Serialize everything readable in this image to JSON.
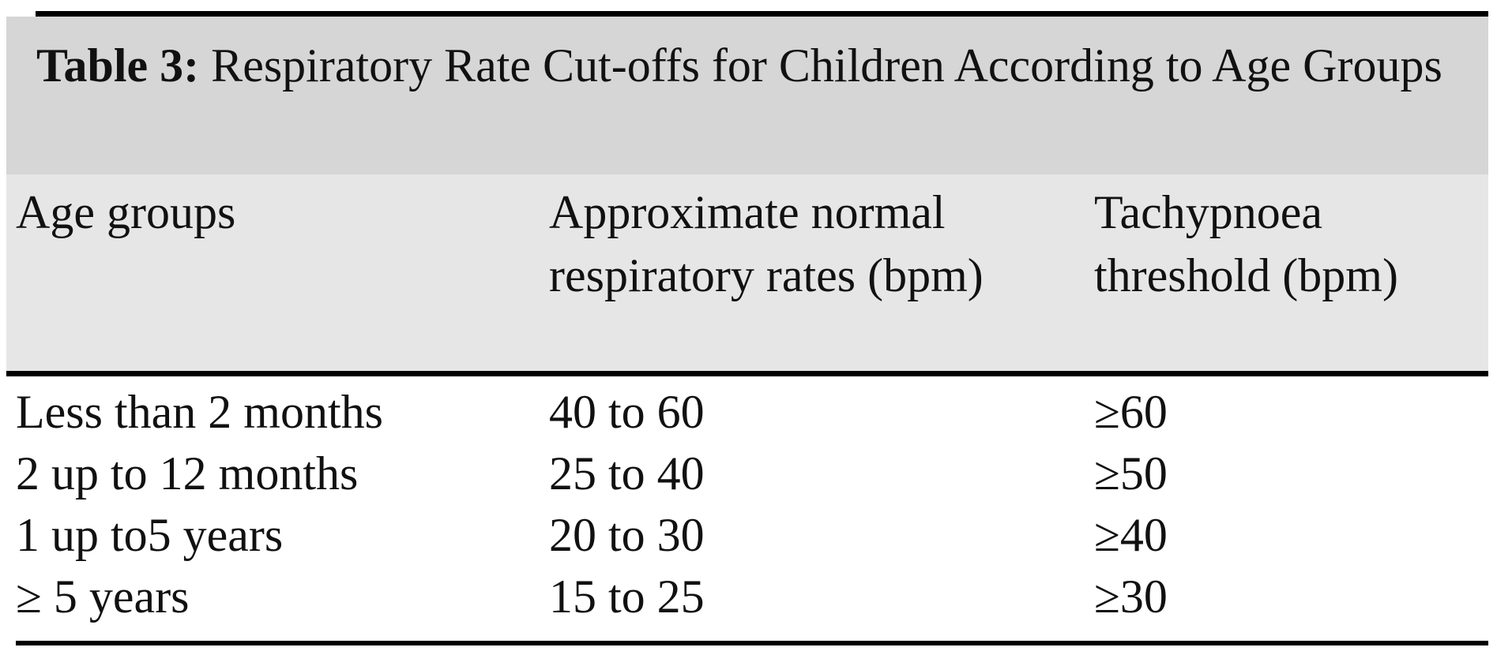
{
  "caption": {
    "label": "Table 3:",
    "text": " Respiratory Rate Cut-offs for Children According to Age Groups"
  },
  "columns": [
    "Age groups",
    "Approximate normal respiratory rates (bpm)",
    "Tachypnoea threshold (bpm)"
  ],
  "rows": [
    {
      "age": "Less than 2 months",
      "normal": "40 to 60",
      "threshold": "≥60"
    },
    {
      "age": "2 up to 12 months",
      "normal": "25 to 40",
      "threshold": "≥50"
    },
    {
      "age": "1 up to5 years",
      "normal": "20 to 30",
      "threshold": "≥40"
    },
    {
      "age": "≥ 5 years",
      "normal": "15 to 25",
      "threshold": "≥30"
    }
  ]
}
